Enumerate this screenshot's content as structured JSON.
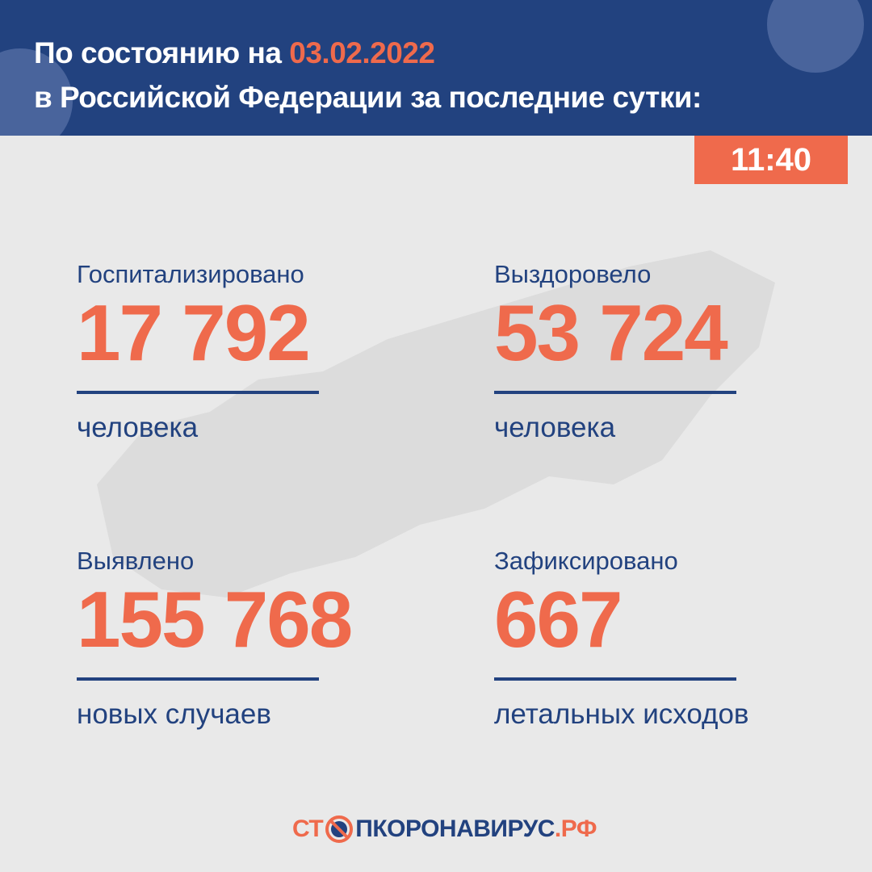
{
  "header": {
    "title_prefix": "По состоянию на",
    "date": "03.02.2022",
    "title_line2": "в Российской Федерации за последние сутки:",
    "time": "11:40"
  },
  "stats": [
    {
      "label": "Госпитализировано",
      "value": "17 792",
      "unit": "человека"
    },
    {
      "label": "Выздоровело",
      "value": "53 724",
      "unit": "человека"
    },
    {
      "label": "Выявлено",
      "value": "155 768",
      "unit": "новых случаев"
    },
    {
      "label": "Зафиксировано",
      "value": "667",
      "unit": "летальных исходов"
    }
  ],
  "logo": {
    "part1": "СТ",
    "part2": "ПКОРОНАВИРУС",
    "part3": ".РФ"
  },
  "colors": {
    "blue": "#22427f",
    "orange": "#ef6a4c",
    "background": "#e9e9e9"
  }
}
